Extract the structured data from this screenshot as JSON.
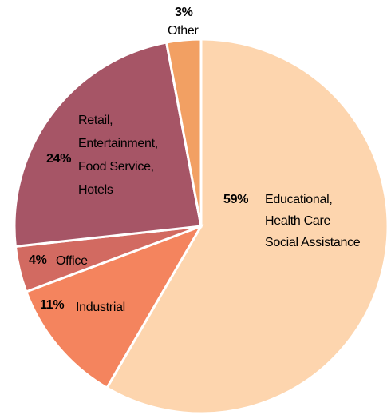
{
  "chart_data": {
    "type": "pie",
    "categories": [
      [
        "Educational,",
        "Health Care",
        "Social Assistance"
      ],
      [
        "Industrial"
      ],
      [
        "Office"
      ],
      [
        "Retail,",
        "Entertainment,",
        "Food Service,",
        "Hotels"
      ],
      [
        "Other"
      ]
    ],
    "values": [
      59,
      11,
      4,
      24,
      3
    ],
    "value_labels": [
      "59%",
      "11%",
      "4%",
      "24%",
      "3%"
    ],
    "colors": [
      "#fdd5ae",
      "#f4845e",
      "#d26a61",
      "#a65566",
      "#f2a063"
    ]
  }
}
